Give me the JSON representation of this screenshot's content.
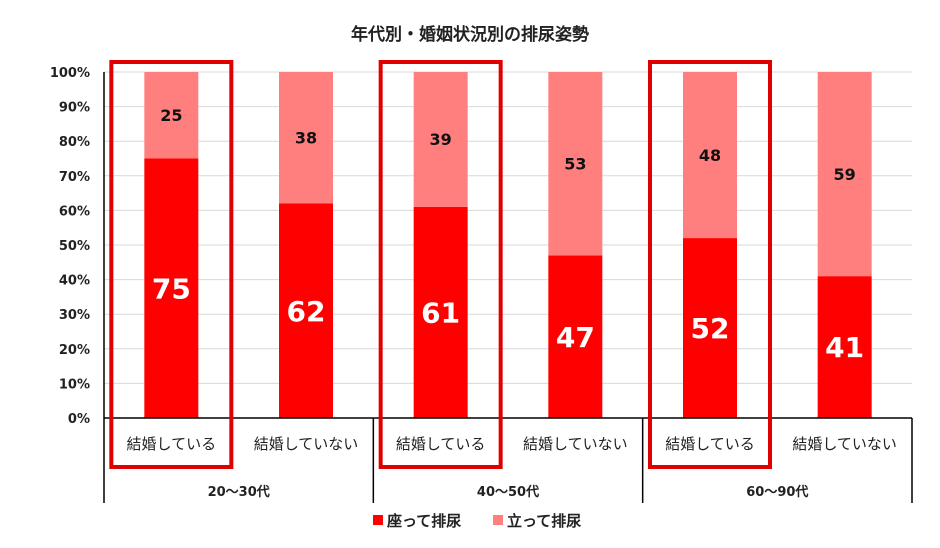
{
  "chart_data": {
    "type": "bar",
    "stacked": true,
    "percent_stacked": true,
    "title": "年代別・婚姻状況別の排尿姿勢",
    "categories": [
      "結婚している",
      "結婚していない",
      "結婚している",
      "結婚していない",
      "結婚している",
      "結婚していない"
    ],
    "groups": [
      {
        "label": "20〜30代",
        "span": 2
      },
      {
        "label": "40〜50代",
        "span": 2
      },
      {
        "label": "60〜90代",
        "span": 2
      }
    ],
    "series": [
      {
        "name": "座って排尿",
        "values": [
          75,
          62,
          61,
          47,
          52,
          41
        ],
        "color": "#FF0000"
      },
      {
        "name": "立って排尿",
        "values": [
          25,
          38,
          39,
          53,
          48,
          59
        ],
        "color": "#FF7F7F"
      }
    ],
    "y_ticks": [
      "0%",
      "10%",
      "20%",
      "30%",
      "40%",
      "50%",
      "60%",
      "70%",
      "80%",
      "90%",
      "100%"
    ],
    "ylim": [
      0,
      100
    ],
    "grid": true,
    "legend_position": "bottom",
    "highlighted_categories": [
      0,
      2,
      4
    ],
    "highlight_color": "#E00000"
  }
}
